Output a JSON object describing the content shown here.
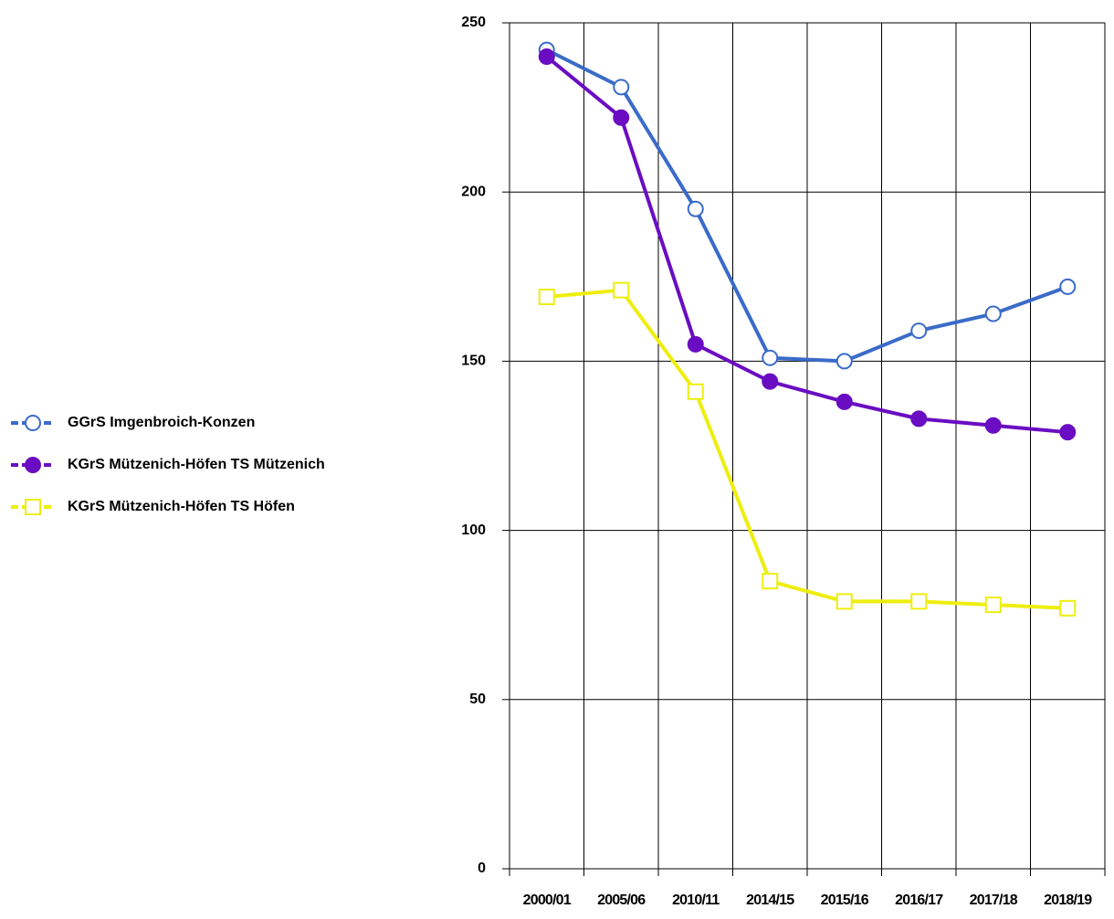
{
  "chart_data": {
    "type": "line",
    "categories": [
      "2000/01",
      "2005/06",
      "2010/11",
      "2014/15",
      "2015/16",
      "2016/17",
      "2017/18",
      "2018/19"
    ],
    "series": [
      {
        "name": "GGrS Imgenbroich-Konzen",
        "color": "#3a6bc9",
        "marker": "circle",
        "filled": false,
        "values": [
          242,
          231,
          195,
          151,
          150,
          159,
          164,
          172
        ]
      },
      {
        "name": "KGrS Mützenich-Höfen TS Mützenich",
        "color": "#6a0dc2",
        "marker": "circle",
        "filled": true,
        "values": [
          240,
          222,
          155,
          144,
          138,
          133,
          131,
          129
        ]
      },
      {
        "name": "KGrS Mützenich-Höfen TS Höfen",
        "color": "#eeee10",
        "marker": "square",
        "filled": false,
        "values": [
          169,
          171,
          141,
          85,
          79,
          79,
          78,
          77
        ]
      }
    ],
    "ylim": [
      0,
      250
    ],
    "yticks": [
      0,
      50,
      100,
      150,
      200,
      250
    ],
    "grid": true,
    "legend": "left"
  }
}
